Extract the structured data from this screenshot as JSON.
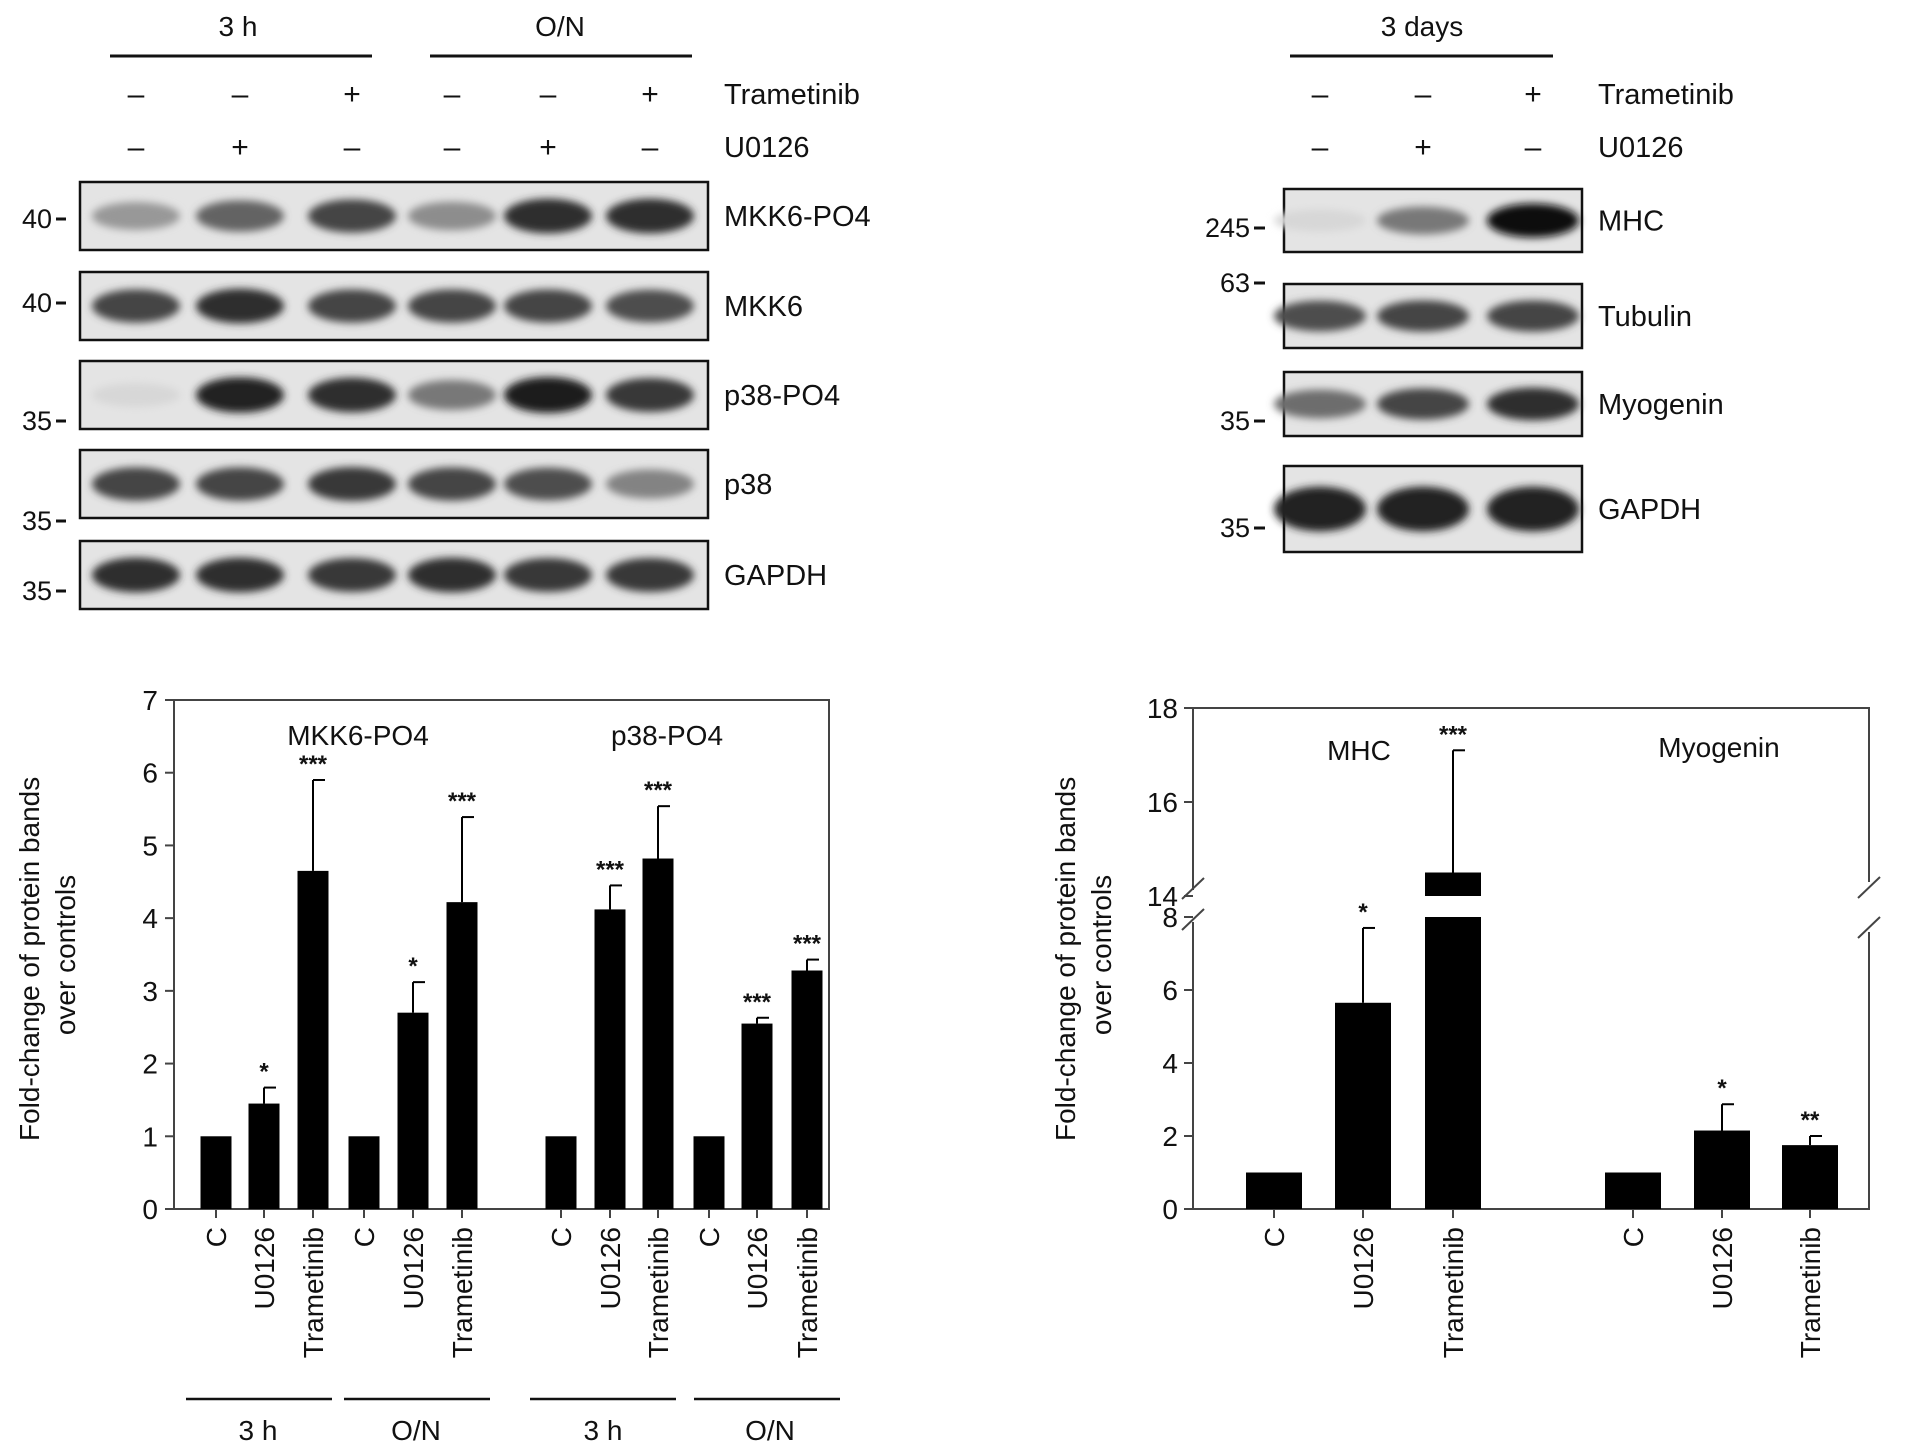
{
  "blot_left": {
    "groups": [
      {
        "label": "3 h",
        "lanes": [
          0,
          2
        ]
      },
      {
        "label": "O/N",
        "lanes": [
          3,
          5
        ]
      }
    ],
    "treatments": [
      {
        "label": "Trametinib",
        "signs": [
          "–",
          "–",
          "+",
          "–",
          "–",
          "+"
        ]
      },
      {
        "label": "U0126",
        "signs": [
          "–",
          "+",
          "–",
          "–",
          "+",
          "–"
        ]
      }
    ],
    "panels": [
      {
        "label": "MKK6-PO4",
        "marker": "40",
        "intensity": [
          0.35,
          0.6,
          0.75,
          0.4,
          0.85,
          0.85
        ]
      },
      {
        "label": "MKK6",
        "marker": "40",
        "intensity": [
          0.75,
          0.85,
          0.75,
          0.75,
          0.75,
          0.7
        ]
      },
      {
        "label": "p38-PO4",
        "marker": "35",
        "intensity": [
          0.05,
          0.9,
          0.85,
          0.5,
          0.95,
          0.8
        ]
      },
      {
        "label": "p38",
        "marker": "35",
        "intensity": [
          0.75,
          0.75,
          0.8,
          0.75,
          0.7,
          0.45
        ]
      },
      {
        "label": "GAPDH",
        "marker": "35",
        "intensity": [
          0.85,
          0.85,
          0.8,
          0.85,
          0.8,
          0.8
        ]
      }
    ]
  },
  "blot_right": {
    "group_label": "3 days",
    "treatments": [
      {
        "label": "Trametinib",
        "signs": [
          "–",
          "–",
          "+"
        ]
      },
      {
        "label": "U0126",
        "signs": [
          "–",
          "+",
          "–"
        ]
      }
    ],
    "panels": [
      {
        "label": "MHC",
        "marker": "245",
        "intensity": [
          0.05,
          0.5,
          1.0
        ]
      },
      {
        "label": "Tubulin",
        "marker": "63",
        "intensity": [
          0.7,
          0.75,
          0.75
        ]
      },
      {
        "label": "Myogenin",
        "marker": "35",
        "intensity": [
          0.55,
          0.75,
          0.85
        ]
      },
      {
        "label": "GAPDH",
        "marker": "35",
        "intensity": [
          0.9,
          0.9,
          0.9
        ]
      }
    ]
  },
  "chart_data": [
    {
      "type": "bar",
      "ylabel": "Fold-change of protein bands over controls",
      "ylim": [
        0,
        7
      ],
      "yticks": [
        "0",
        "1",
        "2",
        "3",
        "4",
        "5",
        "6",
        "7"
      ],
      "section_titles": [
        "MKK6-PO4",
        "p38-PO4"
      ],
      "categories": [
        "C",
        "U0126",
        "Trametinib",
        "C",
        "U0126",
        "Trametinib",
        "C",
        "U0126",
        "Trametinib",
        "C",
        "U0126",
        "Trametinib"
      ],
      "values": [
        1.0,
        1.45,
        4.65,
        1.0,
        2.7,
        4.22,
        1.0,
        4.12,
        4.82,
        1.0,
        2.55,
        3.28
      ],
      "errors": [
        0,
        0.22,
        1.25,
        0,
        0.42,
        1.17,
        0,
        0.33,
        0.72,
        0,
        0.08,
        0.15
      ],
      "significance": [
        "",
        "*",
        "***",
        "",
        "*",
        "***",
        "",
        "***",
        "***",
        "",
        "***",
        "***"
      ],
      "group_labels": [
        "3 h",
        "O/N",
        "3 h",
        "O/N"
      ]
    },
    {
      "type": "bar",
      "ylabel": "Fold-change of protein bands over controls",
      "broken_axis": {
        "lower": [
          0,
          8
        ],
        "upper": [
          14,
          18
        ]
      },
      "yticks": [
        "0",
        "2",
        "4",
        "6",
        "8",
        "14",
        "16",
        "18"
      ],
      "section_titles": [
        "MHC",
        "Myogenin"
      ],
      "categories": [
        "C",
        "U0126",
        "Trametinib",
        "C",
        "U0126",
        "Trametinib"
      ],
      "values": [
        1.0,
        5.65,
        14.5,
        1.0,
        2.15,
        1.75
      ],
      "errors": [
        0,
        2.05,
        2.6,
        0,
        0.72,
        0.25
      ],
      "significance": [
        "",
        "*",
        "***",
        "",
        "*",
        "**"
      ]
    }
  ]
}
